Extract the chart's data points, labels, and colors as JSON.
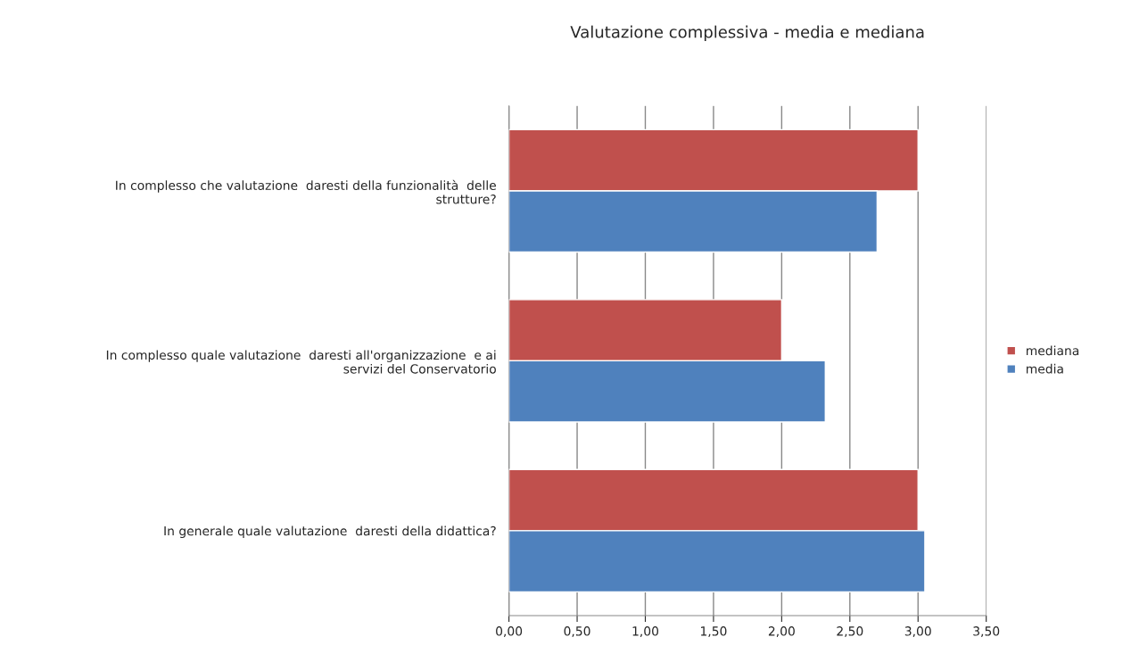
{
  "chart_data": {
    "type": "bar",
    "orientation": "horizontal",
    "title": "Valutazione complessiva - media e mediana",
    "categories": [
      "In complesso che valutazione  daresti della funzionalità  delle\nstrutture?",
      "In complesso quale valutazione  daresti all'organizzazione  e ai\nservizi del Conservatorio",
      "In generale quale valutazione  daresti della didattica?"
    ],
    "series": [
      {
        "name": "mediana",
        "color": "#c0504d",
        "values": [
          3.0,
          2.0,
          3.0
        ]
      },
      {
        "name": "media",
        "color": "#4f81bd",
        "values": [
          2.7,
          2.32,
          3.05
        ]
      }
    ],
    "xlim": [
      0,
      3.5
    ],
    "xticks": [
      {
        "value": 0,
        "label": "0,00"
      },
      {
        "value": 0.5,
        "label": "0,50"
      },
      {
        "value": 1.0,
        "label": "1,00"
      },
      {
        "value": 1.5,
        "label": "1,50"
      },
      {
        "value": 2.0,
        "label": "2,00"
      },
      {
        "value": 2.5,
        "label": "2,50"
      },
      {
        "value": 3.0,
        "label": "3,00"
      },
      {
        "value": 3.5,
        "label": "3,50"
      }
    ],
    "grid": "x",
    "legend": "right"
  }
}
